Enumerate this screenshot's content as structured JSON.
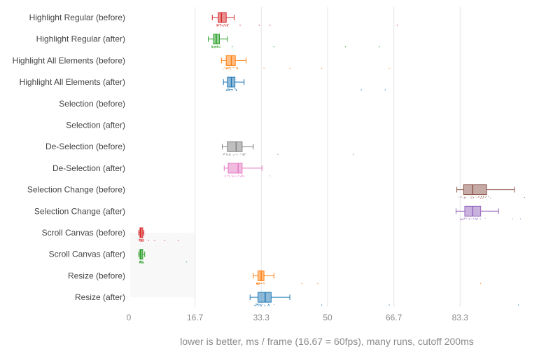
{
  "chart_data": {
    "type": "box",
    "orientation": "horizontal",
    "title": "",
    "xlabel": "lower is better, ms / frame (16.67 = 60fps), many runs, cutoff 200ms",
    "ylabel": "",
    "xlim": [
      0,
      100
    ],
    "x_ticks": [
      0,
      16.67,
      33.33,
      50,
      66.67,
      83.33
    ],
    "x_tick_labels": [
      "0",
      "16.7",
      "33.3",
      "50",
      "66.7",
      "83.3"
    ],
    "grid": true,
    "categories": [
      "Highlight Regular (before)",
      "Highlight Regular (after)",
      "Highlight All Elements (before)",
      "Highlight All Elements (after)",
      "Selection (before)",
      "Selection (after)",
      "De-Selection (before)",
      "De-Selection (after)",
      "Selection Change (before)",
      "Selection Change (after)",
      "Scroll Canvas (before)",
      "Scroll Canvas (after)",
      "Resize (before)",
      "Resize (after)"
    ],
    "series": [
      {
        "category": "Highlight Regular (before)",
        "color": "#d62728",
        "min": 21.0,
        "q1": 22.5,
        "median": 23.3,
        "q3": 24.5,
        "max": 26.5,
        "outliers": [
          28,
          32.8,
          35.5,
          67.5
        ]
      },
      {
        "category": "Highlight Regular (after)",
        "color": "#2ca02c",
        "min": 20.0,
        "q1": 21.3,
        "median": 22.0,
        "q1_label": "",
        "q3": 22.8,
        "max": 24.8,
        "outliers": [
          26,
          36.5,
          54.5,
          63
        ]
      },
      {
        "category": "Highlight All Elements (before)",
        "color": "#ff7f0e",
        "min": 23.3,
        "q1": 24.5,
        "median": 25.8,
        "q3": 26.8,
        "max": 29.5,
        "outliers": [
          34,
          40.5,
          48.5,
          65.5
        ]
      },
      {
        "category": "Highlight All Elements (after)",
        "color": "#1f77b4",
        "min": 23.8,
        "q1": 24.8,
        "median": 25.8,
        "q3": 26.7,
        "max": 29.0,
        "outliers": [
          58.5,
          64.5
        ]
      },
      {
        "category": "Selection (before)",
        "color": "#bcbd22",
        "min": null,
        "q1": null,
        "median": null,
        "q3": null,
        "max": null,
        "outliers": []
      },
      {
        "category": "Selection (after)",
        "color": "#17becf",
        "min": null,
        "q1": null,
        "median": null,
        "q3": null,
        "max": null,
        "outliers": []
      },
      {
        "category": "De-Selection (before)",
        "color": "#7f7f7f",
        "min": 23.5,
        "q1": 24.8,
        "median": 27.0,
        "q3": 28.5,
        "max": 31.3,
        "outliers": [
          37.5,
          56.5
        ]
      },
      {
        "category": "De-Selection (after)",
        "color": "#e377c2",
        "min": 24.0,
        "q1": 25.0,
        "median": 27.5,
        "q3": 28.5,
        "max": 33.5,
        "outliers": [
          35.5
        ]
      },
      {
        "category": "Selection Change (before)",
        "color": "#8c564b",
        "min": 82.5,
        "q1": 84.2,
        "median": 86.5,
        "q3": 90.0,
        "max": 97.0,
        "outliers": [
          99.5
        ]
      },
      {
        "category": "Selection Change (after)",
        "color": "#9467bd",
        "min": 82.3,
        "q1": 84.5,
        "median": 86.5,
        "q3": 88.5,
        "max": 93.0,
        "outliers": [
          96.5,
          98.5
        ]
      },
      {
        "category": "Scroll Canvas (before)",
        "color": "#d62728",
        "min": 2.5,
        "q1": 2.8,
        "median": 3.0,
        "q3": 3.5,
        "max": 3.8,
        "outliers": [
          5,
          6.5,
          9,
          12.5
        ]
      },
      {
        "category": "Scroll Canvas (after)",
        "color": "#2ca02c",
        "min": 2.5,
        "q1": 2.8,
        "median": 3.0,
        "q3": 3.5,
        "max": 4.0,
        "outliers": [
          14.5
        ]
      },
      {
        "category": "Resize (before)",
        "color": "#ff7f0e",
        "min": 31.3,
        "q1": 32.5,
        "median": 33.3,
        "q3": 34.0,
        "max": 36.5,
        "outliers": [
          43.5,
          47.5,
          88.5
        ]
      },
      {
        "category": "Resize (after)",
        "color": "#1f77b4",
        "min": 30.5,
        "q1": 32.5,
        "median": 34.3,
        "q3": 35.8,
        "max": 40.5,
        "outliers": [
          48.5,
          65.5,
          98.0
        ]
      }
    ]
  }
}
